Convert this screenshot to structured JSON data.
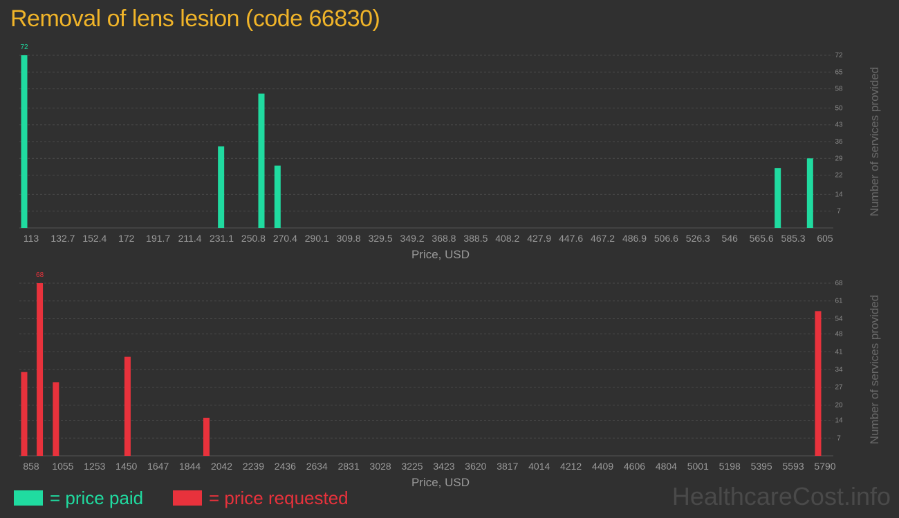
{
  "title": "Removal of lens lesion (code 66830)",
  "watermark": "HealthcareCost.info",
  "colors": {
    "paid": "#20dba0",
    "requested": "#e8323c",
    "title": "#f0b429"
  },
  "legend": {
    "paid_label": "= price paid",
    "requested_label": "= price requested"
  },
  "chart_data": [
    {
      "type": "bar",
      "series_name": "price paid",
      "xlabel": "Price, USD",
      "ylabel": "Number of services provided",
      "x_ticks": [
        "113",
        "132.7",
        "152.4",
        "172",
        "191.7",
        "211.4",
        "231.1",
        "250.8",
        "270.4",
        "290.1",
        "309.8",
        "329.5",
        "349.2",
        "368.8",
        "388.5",
        "408.2",
        "427.9",
        "447.6",
        "467.2",
        "486.9",
        "506.6",
        "526.3",
        "546",
        "565.6",
        "585.3",
        "605"
      ],
      "y_ticks": [
        7,
        14,
        22,
        29,
        36,
        43,
        50,
        58,
        65,
        72
      ],
      "ylim": [
        0,
        72
      ],
      "xlim": [
        113,
        605
      ],
      "points": [
        {
          "x": 113,
          "y": 72
        },
        {
          "x": 235,
          "y": 34
        },
        {
          "x": 260,
          "y": 56
        },
        {
          "x": 270,
          "y": 26
        },
        {
          "x": 580,
          "y": 25
        },
        {
          "x": 600,
          "y": 29
        }
      ],
      "data_labels": [
        {
          "x": 113,
          "label": "72"
        }
      ]
    },
    {
      "type": "bar",
      "series_name": "price requested",
      "xlabel": "Price, USD",
      "ylabel": "Number of services provided",
      "x_ticks": [
        "858",
        "1055",
        "1253",
        "1450",
        "1647",
        "1844",
        "2042",
        "2239",
        "2436",
        "2634",
        "2831",
        "3028",
        "3225",
        "3423",
        "3620",
        "3817",
        "4014",
        "4212",
        "4409",
        "4606",
        "4804",
        "5001",
        "5198",
        "5395",
        "5593",
        "5790"
      ],
      "y_ticks": [
        7,
        14,
        20,
        27,
        34,
        41,
        48,
        54,
        61,
        68
      ],
      "ylim": [
        0,
        68
      ],
      "xlim": [
        858,
        5790
      ],
      "points": [
        {
          "x": 858,
          "y": 33
        },
        {
          "x": 955,
          "y": 68
        },
        {
          "x": 1055,
          "y": 29
        },
        {
          "x": 1500,
          "y": 39
        },
        {
          "x": 1990,
          "y": 15
        },
        {
          "x": 5790,
          "y": 57
        }
      ],
      "data_labels": [
        {
          "x": 955,
          "label": "68"
        }
      ]
    }
  ]
}
